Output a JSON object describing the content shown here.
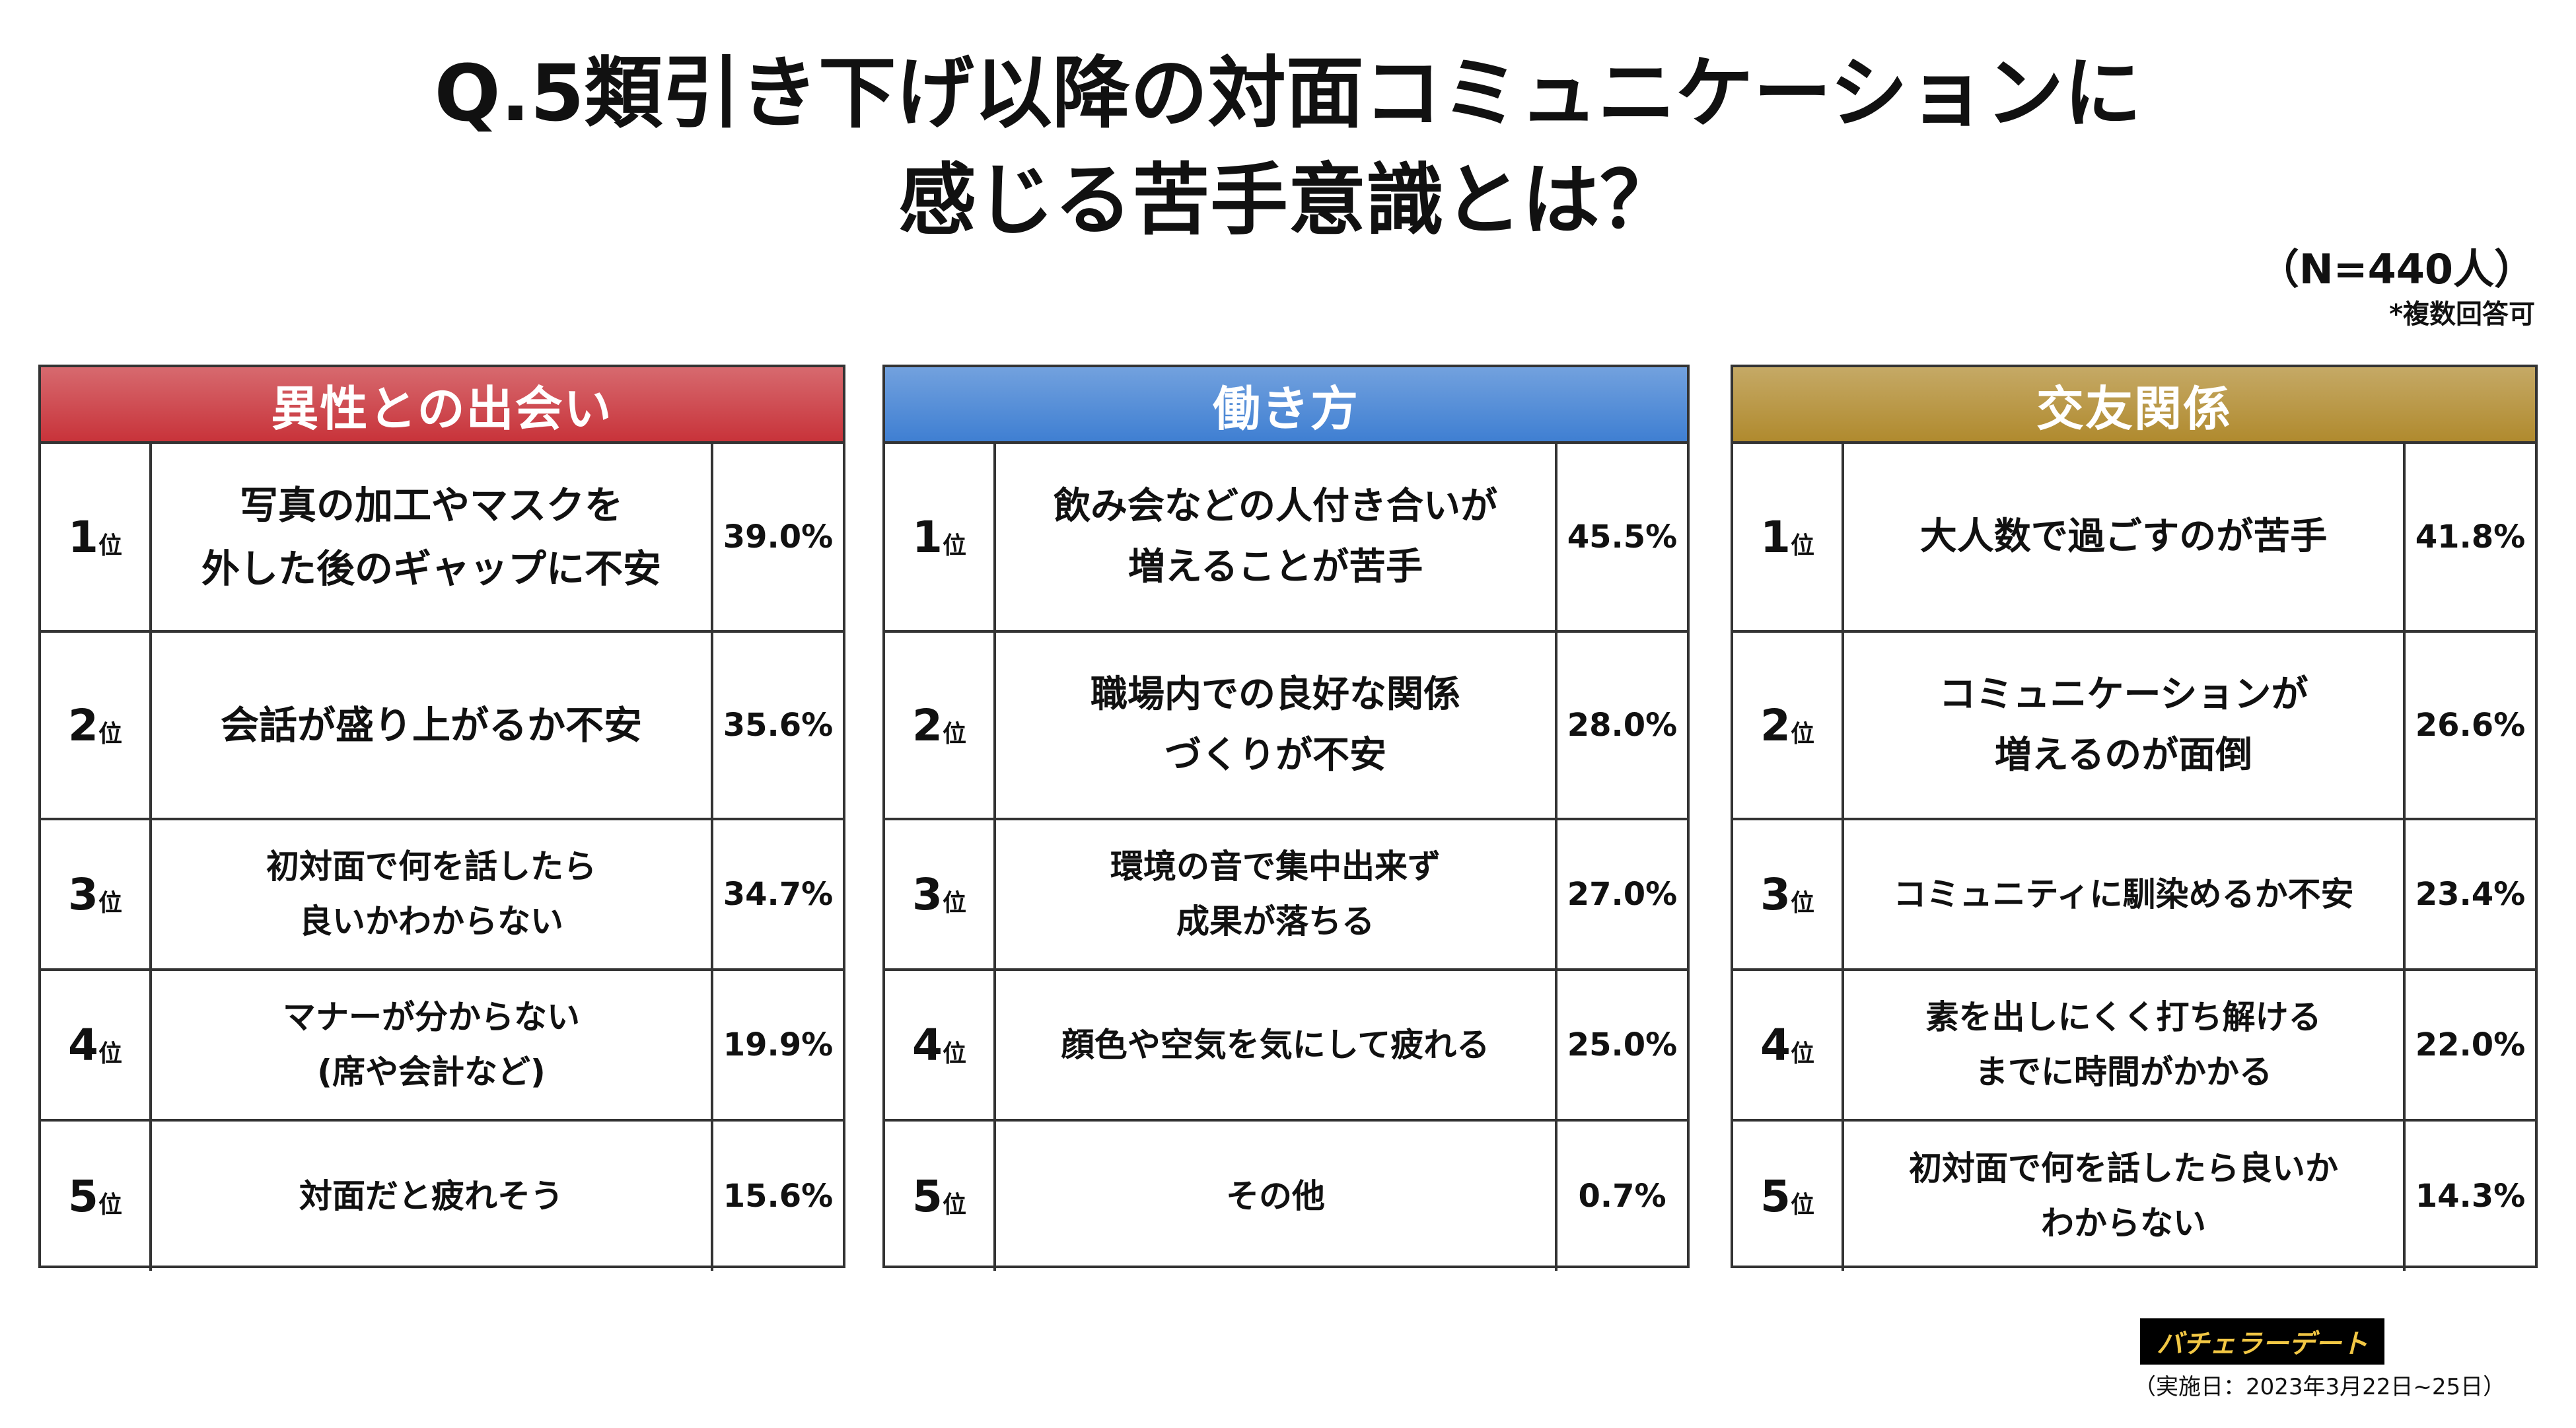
{
  "title": {
    "line1": "Q.5類引き下げ以降の対面コミュニケーションに",
    "line2": "感じる苦手意識とは？"
  },
  "n_label": "（N=440人）",
  "multi_note": "*複数回答可",
  "rank_suffix": "位",
  "chart_data": [
    {
      "type": "table",
      "title": "異性との出会い",
      "header_color": "#c8333a",
      "rows": [
        {
          "rank": "1",
          "label": "写真の加工やマスクを\n外した後のギャップに不安",
          "value": "39.0%"
        },
        {
          "rank": "2",
          "label": "会話が盛り上がるか不安",
          "value": "35.6%"
        },
        {
          "rank": "3",
          "label": "初対面で何を話したら\n良いかわからない",
          "value": "34.7%"
        },
        {
          "rank": "4",
          "label": "マナーが分からない\n(席や会計など)",
          "value": "19.9%"
        },
        {
          "rank": "5",
          "label": "対面だと疲れそう",
          "value": "15.6%"
        }
      ]
    },
    {
      "type": "table",
      "title": "働き方",
      "header_color": "#3f7fd2",
      "rows": [
        {
          "rank": "1",
          "label": "飲み会などの人付き合いが\n増えることが苦手",
          "value": "45.5%"
        },
        {
          "rank": "2",
          "label": "職場内での良好な関係\nづくりが不安",
          "value": "28.0%"
        },
        {
          "rank": "3",
          "label": "環境の音で集中出来ず\n成果が落ちる",
          "value": "27.0%"
        },
        {
          "rank": "4",
          "label": "顔色や空気を気にして疲れる",
          "value": "25.0%"
        },
        {
          "rank": "5",
          "label": "その他",
          "value": "0.7%"
        }
      ]
    },
    {
      "type": "table",
      "title": "交友関係",
      "header_color": "#b08a2e",
      "rows": [
        {
          "rank": "1",
          "label": "大人数で過ごすのが苦手",
          "value": "41.8%"
        },
        {
          "rank": "2",
          "label": "コミュニケーションが\n増えるのが面倒",
          "value": "26.6%"
        },
        {
          "rank": "3",
          "label": "コミュニティに馴染めるか不安",
          "value": "23.4%"
        },
        {
          "rank": "4",
          "label": "素を出しにくく打ち解ける\nまでに時間がかかる",
          "value": "22.0%"
        },
        {
          "rank": "5",
          "label": "初対面で何を話したら良いか\nわからない",
          "value": "14.3%"
        }
      ]
    }
  ],
  "logo_text": "バチェラーデート",
  "survey_date": "（実施日：2023年3月22日~25日）"
}
